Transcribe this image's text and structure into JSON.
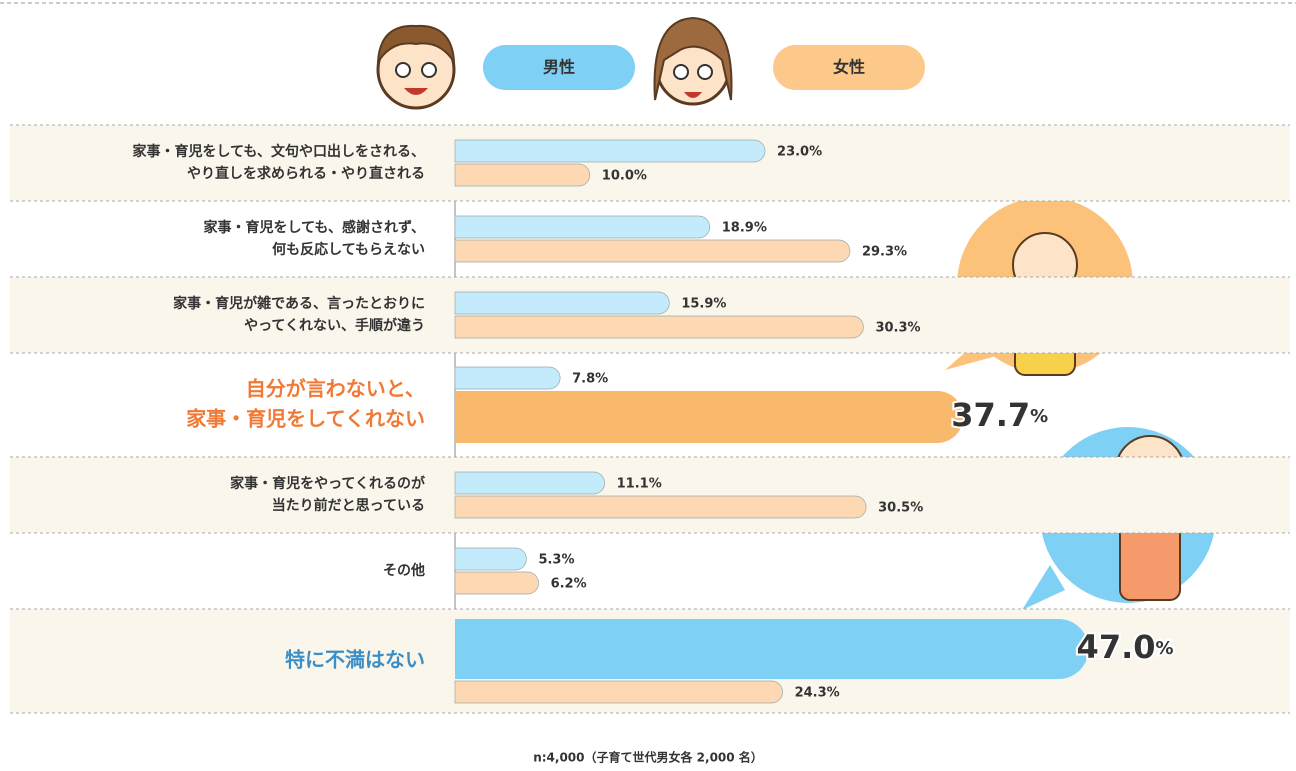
{
  "chart_data": {
    "type": "grouped-hbar",
    "categories": [
      [
        "家事・育児をしても、文句や口出しをされる、",
        "やり直しを求められる・やり直される"
      ],
      [
        "家事・育児をしても、感謝されず、",
        "何も反応してもらえない"
      ],
      [
        "家事・育児が雑である、言ったとおりに",
        "やってくれない、手順が違う"
      ],
      [
        "自分が言わないと、",
        "家事・育児をしてくれない"
      ],
      [
        "家事・育児をやってくれるのが",
        "当たり前だと思っている"
      ],
      [
        "その他"
      ],
      [
        "特に不満はない"
      ]
    ],
    "category_colors": [
      "#333333",
      "#333333",
      "#333333",
      "#f07a35",
      "#333333",
      "#333333",
      "#3b8fc6"
    ],
    "series": [
      {
        "name": "男性",
        "color": "#c4ebfb",
        "legend_color": "#7fd0f5",
        "highlight_colors": [
          null,
          null,
          null,
          null,
          null,
          null,
          "#7fd0f5"
        ],
        "values": [
          23.0,
          18.9,
          15.9,
          7.8,
          11.1,
          5.3,
          47.0
        ],
        "value_labels": [
          "23.0%",
          "18.9%",
          "15.9%",
          "7.8%",
          "11.1%",
          "5.3%",
          "47.0%"
        ]
      },
      {
        "name": "女性",
        "color": "#fdd8b3",
        "legend_color": "#fdc98a",
        "highlight_colors": [
          null,
          null,
          null,
          "#f9b96c",
          null,
          null,
          null
        ],
        "values": [
          10.0,
          29.3,
          30.3,
          37.7,
          30.5,
          6.2,
          24.3
        ],
        "value_labels": [
          "10.0%",
          "29.3%",
          "30.3%",
          "37.7%",
          "30.5%",
          "6.2%",
          "24.3%"
        ]
      }
    ],
    "note": "n:4,000（子育て世代男女各 2,000 名）"
  }
}
